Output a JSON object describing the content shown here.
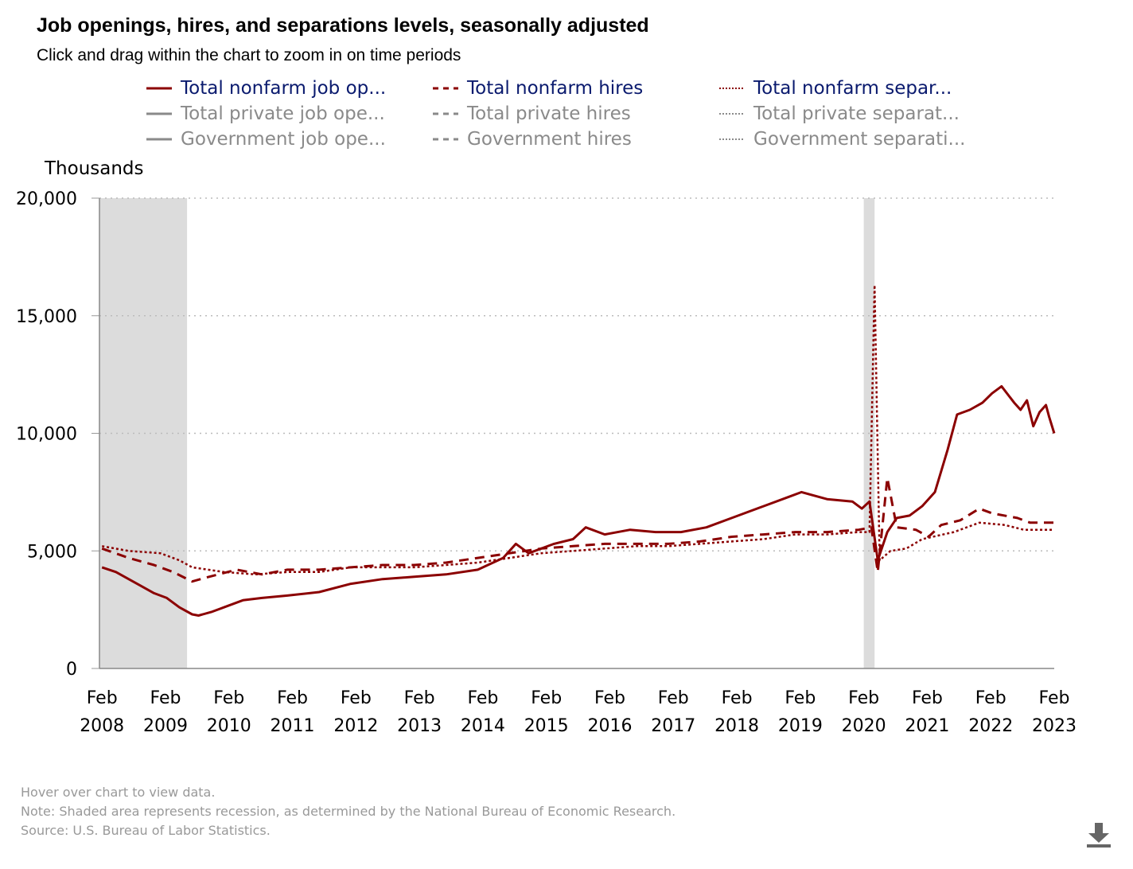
{
  "title": "Job openings, hires, and separations levels, seasonally adjusted",
  "subtitle": "Click and drag within the chart to zoom in on time periods",
  "legend": [
    {
      "label": "Total nonfarm job op...",
      "style": "solid",
      "active": true
    },
    {
      "label": "Total nonfarm hires",
      "style": "dashed",
      "active": true
    },
    {
      "label": "Total nonfarm separ...",
      "style": "dotted",
      "active": true
    },
    {
      "label": "Total private job ope...",
      "style": "solid",
      "active": false
    },
    {
      "label": "Total private hires",
      "style": "dashed",
      "active": false
    },
    {
      "label": "Total private separat...",
      "style": "dotted",
      "active": false
    },
    {
      "label": "Government job ope...",
      "style": "solid",
      "active": false
    },
    {
      "label": "Government hires",
      "style": "dashed",
      "active": false
    },
    {
      "label": "Government separati...",
      "style": "dotted",
      "active": false
    }
  ],
  "footer": {
    "hover": "Hover over chart to view data.",
    "note": "Note: Shaded area represents recession, as determined by the National Bureau of Economic Research.",
    "source": "Source: U.S. Bureau of Labor Statistics."
  },
  "colors": {
    "series": "#8b0000",
    "inactive": "#8a8a8a",
    "recession": "#dcdcdc",
    "grid": "#bbbbbb"
  },
  "chart_data": {
    "type": "line",
    "title": "Job openings, hires, and separations levels, seasonally adjusted",
    "ylabel": "Thousands",
    "ylim": [
      0,
      20000
    ],
    "xlim": [
      2008.04,
      2023.08
    ],
    "yticks": [
      {
        "v": 0,
        "label": "0"
      },
      {
        "v": 5000,
        "label": "5,000"
      },
      {
        "v": 10000,
        "label": "10,000"
      },
      {
        "v": 15000,
        "label": "15,000"
      },
      {
        "v": 20000,
        "label": "20,000"
      }
    ],
    "xticks": [
      {
        "v": 2008.08,
        "m": "Feb",
        "y": "2008"
      },
      {
        "v": 2009.08,
        "m": "Feb",
        "y": "2009"
      },
      {
        "v": 2010.08,
        "m": "Feb",
        "y": "2010"
      },
      {
        "v": 2011.08,
        "m": "Feb",
        "y": "2011"
      },
      {
        "v": 2012.08,
        "m": "Feb",
        "y": "2012"
      },
      {
        "v": 2013.08,
        "m": "Feb",
        "y": "2013"
      },
      {
        "v": 2014.08,
        "m": "Feb",
        "y": "2014"
      },
      {
        "v": 2015.08,
        "m": "Feb",
        "y": "2015"
      },
      {
        "v": 2016.08,
        "m": "Feb",
        "y": "2016"
      },
      {
        "v": 2017.08,
        "m": "Feb",
        "y": "2017"
      },
      {
        "v": 2018.08,
        "m": "Feb",
        "y": "2018"
      },
      {
        "v": 2019.08,
        "m": "Feb",
        "y": "2019"
      },
      {
        "v": 2020.08,
        "m": "Feb",
        "y": "2020"
      },
      {
        "v": 2021.08,
        "m": "Feb",
        "y": "2021"
      },
      {
        "v": 2022.08,
        "m": "Feb",
        "y": "2022"
      },
      {
        "v": 2023.08,
        "m": "Feb",
        "y": "2023"
      }
    ],
    "recessions": [
      [
        2008.04,
        2009.42
      ],
      [
        2020.08,
        2020.25
      ]
    ],
    "grid": true,
    "series": [
      {
        "name": "Total nonfarm job openings",
        "style": "solid",
        "points": [
          [
            2008.08,
            4300
          ],
          [
            2008.3,
            4100
          ],
          [
            2008.5,
            3800
          ],
          [
            2008.7,
            3500
          ],
          [
            2008.9,
            3200
          ],
          [
            2009.1,
            3000
          ],
          [
            2009.3,
            2600
          ],
          [
            2009.5,
            2300
          ],
          [
            2009.6,
            2250
          ],
          [
            2009.8,
            2400
          ],
          [
            2010.0,
            2600
          ],
          [
            2010.3,
            2900
          ],
          [
            2010.6,
            3000
          ],
          [
            2011.0,
            3100
          ],
          [
            2011.5,
            3250
          ],
          [
            2012.0,
            3600
          ],
          [
            2012.5,
            3800
          ],
          [
            2013.0,
            3900
          ],
          [
            2013.5,
            4000
          ],
          [
            2014.0,
            4200
          ],
          [
            2014.4,
            4700
          ],
          [
            2014.6,
            5300
          ],
          [
            2014.8,
            4900
          ],
          [
            2015.2,
            5300
          ],
          [
            2015.5,
            5500
          ],
          [
            2015.7,
            6000
          ],
          [
            2016.0,
            5700
          ],
          [
            2016.4,
            5900
          ],
          [
            2016.8,
            5800
          ],
          [
            2017.2,
            5800
          ],
          [
            2017.6,
            6000
          ],
          [
            2018.0,
            6400
          ],
          [
            2018.5,
            6900
          ],
          [
            2018.9,
            7300
          ],
          [
            2019.1,
            7500
          ],
          [
            2019.5,
            7200
          ],
          [
            2019.9,
            7100
          ],
          [
            2020.05,
            6800
          ],
          [
            2020.17,
            7100
          ],
          [
            2020.3,
            4600
          ],
          [
            2020.45,
            5800
          ],
          [
            2020.6,
            6400
          ],
          [
            2020.8,
            6500
          ],
          [
            2021.0,
            6900
          ],
          [
            2021.2,
            7500
          ],
          [
            2021.4,
            9300
          ],
          [
            2021.55,
            10800
          ],
          [
            2021.75,
            11000
          ],
          [
            2021.95,
            11300
          ],
          [
            2022.1,
            11700
          ],
          [
            2022.25,
            12000
          ],
          [
            2022.45,
            11300
          ],
          [
            2022.55,
            11000
          ],
          [
            2022.65,
            11400
          ],
          [
            2022.75,
            10300
          ],
          [
            2022.85,
            10900
          ],
          [
            2022.95,
            11200
          ],
          [
            2023.0,
            10700
          ],
          [
            2023.08,
            10000
          ]
        ]
      },
      {
        "name": "Total nonfarm hires",
        "style": "dashed",
        "points": [
          [
            2008.08,
            5100
          ],
          [
            2008.5,
            4700
          ],
          [
            2008.9,
            4400
          ],
          [
            2009.2,
            4100
          ],
          [
            2009.5,
            3700
          ],
          [
            2009.7,
            3850
          ],
          [
            2010.2,
            4200
          ],
          [
            2010.6,
            4000
          ],
          [
            2011.0,
            4200
          ],
          [
            2011.5,
            4200
          ],
          [
            2012.0,
            4300
          ],
          [
            2012.5,
            4400
          ],
          [
            2013.0,
            4400
          ],
          [
            2013.5,
            4500
          ],
          [
            2014.0,
            4700
          ],
          [
            2014.5,
            4900
          ],
          [
            2015.0,
            5100
          ],
          [
            2015.5,
            5200
          ],
          [
            2016.0,
            5300
          ],
          [
            2016.5,
            5300
          ],
          [
            2017.0,
            5300
          ],
          [
            2017.5,
            5400
          ],
          [
            2018.0,
            5600
          ],
          [
            2018.5,
            5700
          ],
          [
            2019.0,
            5800
          ],
          [
            2019.5,
            5800
          ],
          [
            2020.0,
            5900
          ],
          [
            2020.2,
            6000
          ],
          [
            2020.3,
            4100
          ],
          [
            2020.45,
            8100
          ],
          [
            2020.6,
            6000
          ],
          [
            2020.9,
            5900
          ],
          [
            2021.1,
            5600
          ],
          [
            2021.3,
            6100
          ],
          [
            2021.6,
            6300
          ],
          [
            2021.9,
            6800
          ],
          [
            2022.1,
            6600
          ],
          [
            2022.5,
            6400
          ],
          [
            2022.7,
            6200
          ],
          [
            2023.08,
            6200
          ]
        ]
      },
      {
        "name": "Total nonfarm separations",
        "style": "dotted",
        "points": [
          [
            2008.08,
            5200
          ],
          [
            2008.5,
            5000
          ],
          [
            2009.0,
            4900
          ],
          [
            2009.3,
            4600
          ],
          [
            2009.5,
            4300
          ],
          [
            2010.0,
            4100
          ],
          [
            2010.5,
            4000
          ],
          [
            2011.0,
            4100
          ],
          [
            2011.5,
            4100
          ],
          [
            2012.0,
            4300
          ],
          [
            2012.5,
            4300
          ],
          [
            2013.0,
            4300
          ],
          [
            2013.5,
            4400
          ],
          [
            2014.0,
            4500
          ],
          [
            2014.5,
            4700
          ],
          [
            2015.0,
            4900
          ],
          [
            2015.5,
            5000
          ],
          [
            2016.0,
            5100
          ],
          [
            2016.5,
            5200
          ],
          [
            2017.0,
            5200
          ],
          [
            2017.5,
            5300
          ],
          [
            2018.0,
            5400
          ],
          [
            2018.5,
            5500
          ],
          [
            2019.0,
            5700
          ],
          [
            2019.5,
            5700
          ],
          [
            2020.0,
            5800
          ],
          [
            2020.17,
            5800
          ],
          [
            2020.25,
            16300
          ],
          [
            2020.33,
            4600
          ],
          [
            2020.5,
            5000
          ],
          [
            2020.75,
            5100
          ],
          [
            2021.0,
            5500
          ],
          [
            2021.5,
            5800
          ],
          [
            2021.9,
            6200
          ],
          [
            2022.3,
            6100
          ],
          [
            2022.6,
            5900
          ],
          [
            2023.08,
            5900
          ]
        ]
      }
    ]
  }
}
